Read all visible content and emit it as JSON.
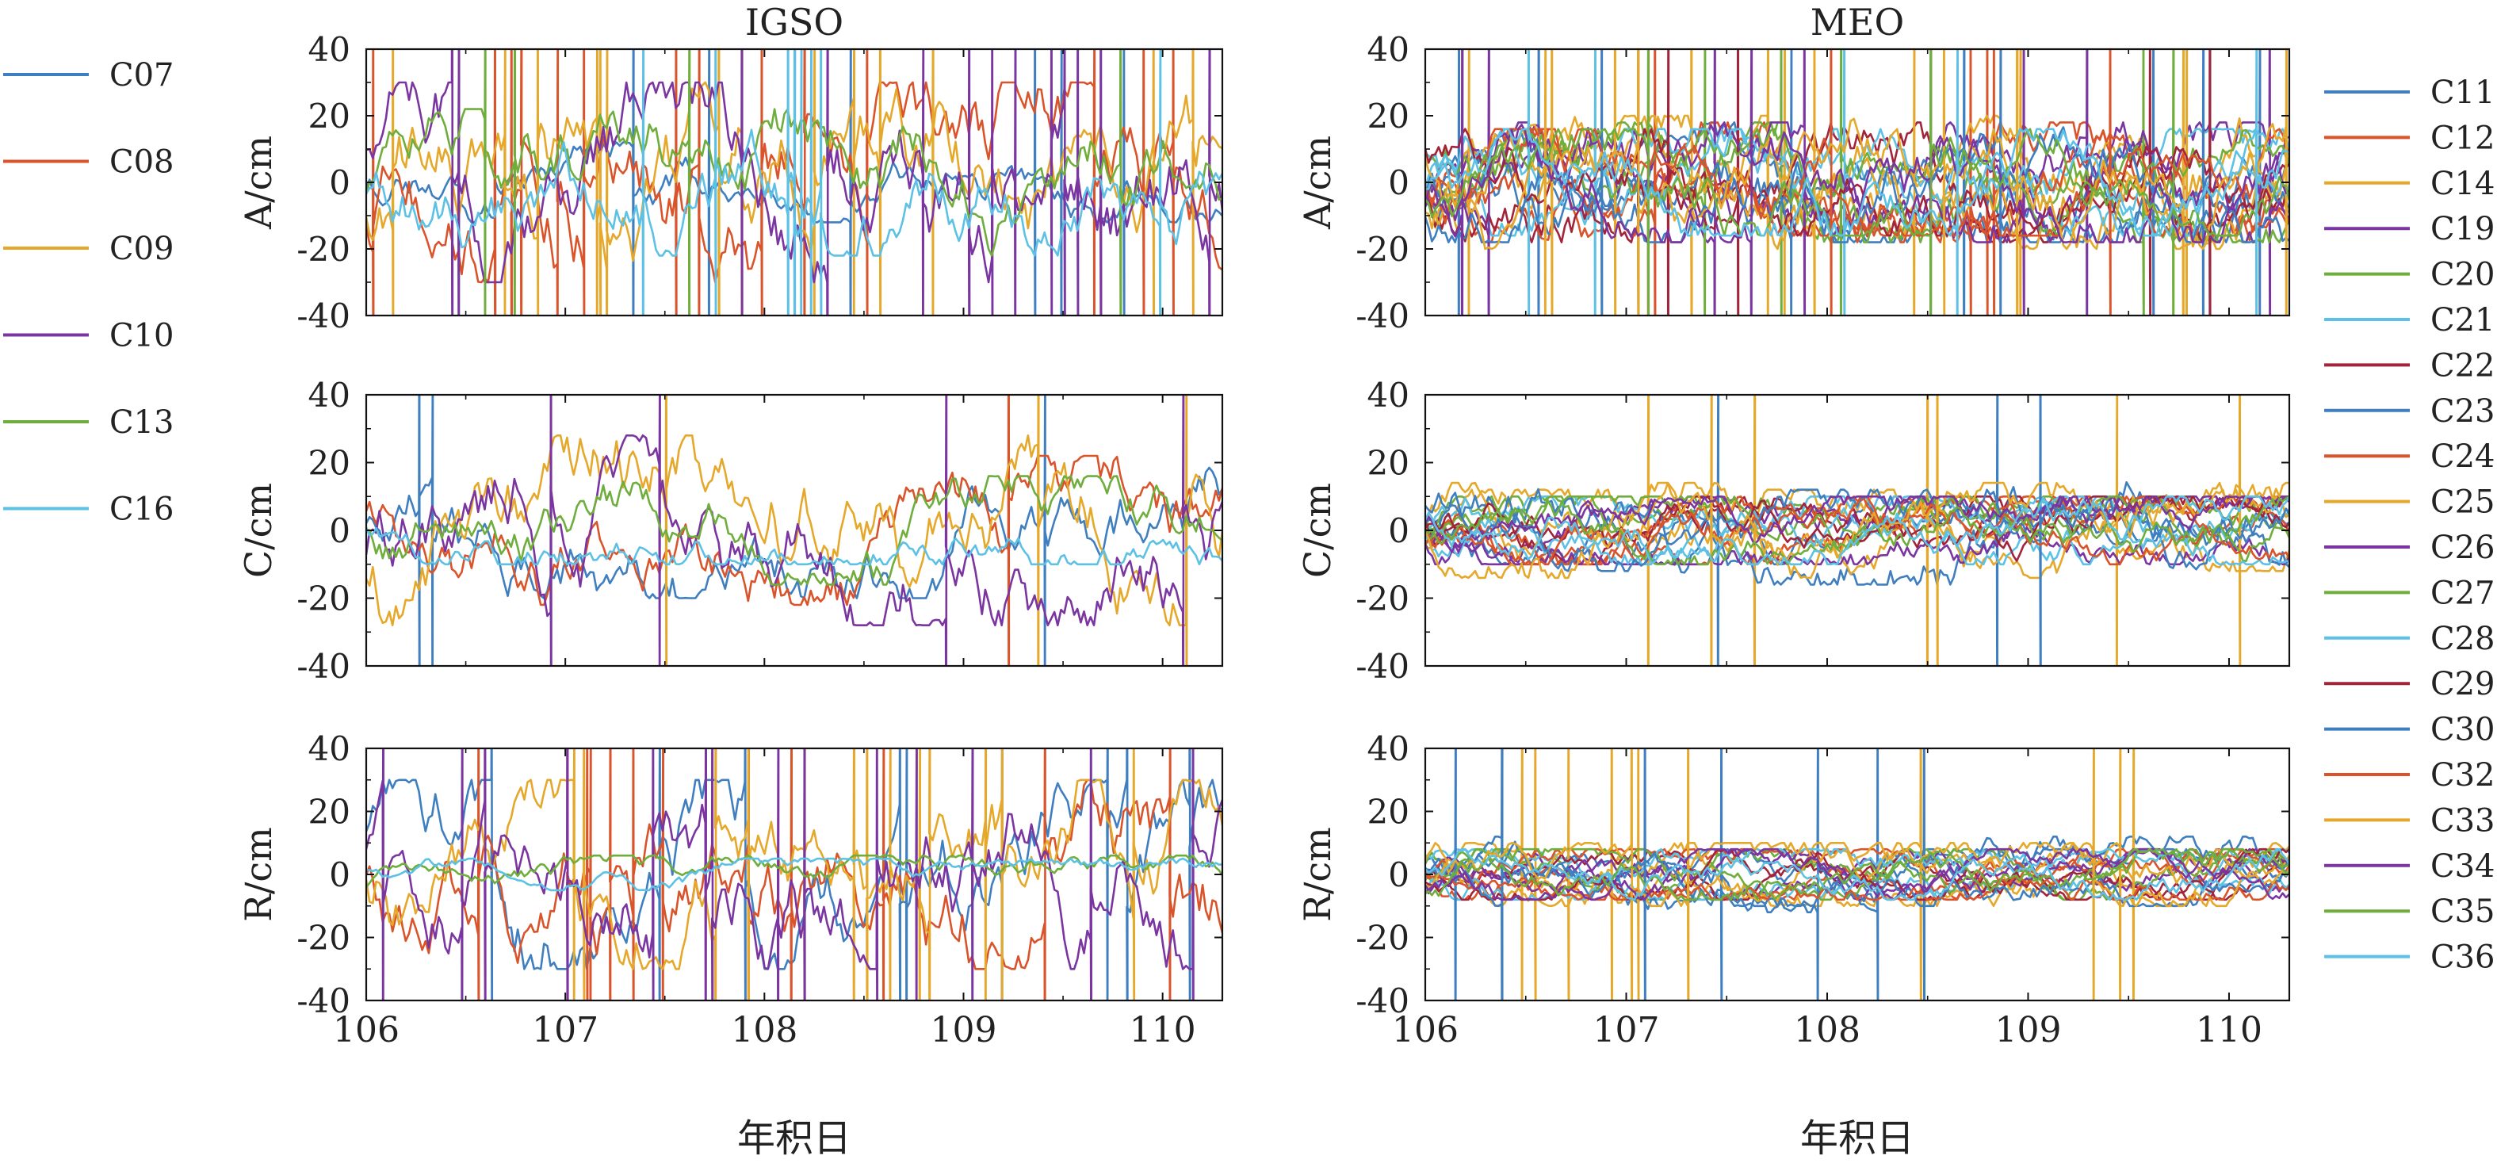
{
  "colors": {
    "C07": "#3F7FC0",
    "C08": "#D9542B",
    "C09": "#E5A82A",
    "C10": "#7B35A1",
    "C13": "#6FAE3C",
    "C16": "#5DC1E6",
    "C11": "#3F7FC0",
    "C12": "#D9542B",
    "C14": "#E5A82A",
    "C19": "#7B35A1",
    "C20": "#6FAE3C",
    "C21": "#5DC1E6",
    "C22": "#A2243A",
    "C23": "#3F7FC0",
    "C24": "#D9542B",
    "C25": "#E5A82A",
    "C26": "#7B35A1",
    "C27": "#6FAE3C",
    "C28": "#5DC1E6",
    "C29": "#A2243A",
    "C30": "#3F7FC0",
    "C32": "#D9542B",
    "C33": "#E5A82A",
    "C34": "#7B35A1",
    "C35": "#6FAE3C",
    "C36": "#5DC1E6"
  },
  "chart_data": [
    {
      "type": "line",
      "group": "IGSO",
      "title": "IGSO",
      "xlabel": "",
      "ylabel": "A/cm",
      "xlim": [
        106,
        110.3
      ],
      "ylim": [
        -40,
        40
      ],
      "xticks": [
        106,
        107,
        108,
        109,
        110
      ],
      "yticks": [
        -40,
        -20,
        0,
        20,
        40
      ],
      "series": [
        {
          "name": "C07",
          "amplitude": 12,
          "spikes": 10
        },
        {
          "name": "C08",
          "amplitude": 30,
          "spikes": 14
        },
        {
          "name": "C09",
          "amplitude": 30,
          "spikes": 14
        },
        {
          "name": "C10",
          "amplitude": 30,
          "spikes": 14
        },
        {
          "name": "C13",
          "amplitude": 22,
          "spikes": 4
        },
        {
          "name": "C16",
          "amplitude": 22,
          "spikes": 8
        }
      ]
    },
    {
      "type": "line",
      "group": "IGSO",
      "title": "",
      "xlabel": "",
      "ylabel": "C/cm",
      "xlim": [
        106,
        110.3
      ],
      "ylim": [
        -40,
        40
      ],
      "xticks": [
        106,
        107,
        108,
        109,
        110
      ],
      "yticks": [
        -40,
        -20,
        0,
        20,
        40
      ],
      "series": [
        {
          "name": "C07",
          "amplitude": 20,
          "spikes": 3
        },
        {
          "name": "C08",
          "amplitude": 22,
          "spikes": 1
        },
        {
          "name": "C09",
          "amplitude": 28,
          "spikes": 3
        },
        {
          "name": "C10",
          "amplitude": 28,
          "spikes": 4
        },
        {
          "name": "C13",
          "amplitude": 16,
          "spikes": 0
        },
        {
          "name": "C16",
          "amplitude": 10,
          "spikes": 0
        }
      ]
    },
    {
      "type": "line",
      "group": "IGSO",
      "title": "",
      "xlabel": "年积日",
      "ylabel": "R/cm",
      "xlim": [
        106,
        110.3
      ],
      "ylim": [
        -40,
        40
      ],
      "xticks": [
        106,
        107,
        108,
        109,
        110
      ],
      "yticks": [
        -40,
        -20,
        0,
        20,
        40
      ],
      "series": [
        {
          "name": "C07",
          "amplitude": 30,
          "spikes": 10
        },
        {
          "name": "C08",
          "amplitude": 30,
          "spikes": 12
        },
        {
          "name": "C09",
          "amplitude": 30,
          "spikes": 14
        },
        {
          "name": "C10",
          "amplitude": 30,
          "spikes": 14
        },
        {
          "name": "C13",
          "amplitude": 6,
          "spikes": 0
        },
        {
          "name": "C16",
          "amplitude": 5,
          "spikes": 0
        }
      ]
    },
    {
      "type": "line",
      "group": "MEO",
      "title": "MEO",
      "xlabel": "",
      "ylabel": "A/cm",
      "xlim": [
        106,
        110.3
      ],
      "ylim": [
        -40,
        40
      ],
      "xticks": [
        106,
        107,
        108,
        109,
        110
      ],
      "yticks": [
        -40,
        -20,
        0,
        20,
        40
      ],
      "series": [
        {
          "name": "C11",
          "amplitude": 18,
          "spikes": 4
        },
        {
          "name": "C12",
          "amplitude": 18,
          "spikes": 3
        },
        {
          "name": "C14",
          "amplitude": 20,
          "spikes": 6
        },
        {
          "name": "C19",
          "amplitude": 18,
          "spikes": 3
        },
        {
          "name": "C20",
          "amplitude": 18,
          "spikes": 3
        },
        {
          "name": "C21",
          "amplitude": 16,
          "spikes": 2
        },
        {
          "name": "C22",
          "amplitude": 18,
          "spikes": 3
        },
        {
          "name": "C23",
          "amplitude": 18,
          "spikes": 4
        },
        {
          "name": "C24",
          "amplitude": 16,
          "spikes": 2
        },
        {
          "name": "C25",
          "amplitude": 20,
          "spikes": 6
        },
        {
          "name": "C26",
          "amplitude": 18,
          "spikes": 3
        },
        {
          "name": "C27",
          "amplitude": 16,
          "spikes": 2
        },
        {
          "name": "C28",
          "amplitude": 16,
          "spikes": 2
        },
        {
          "name": "C29",
          "amplitude": 16,
          "spikes": 2
        },
        {
          "name": "C30",
          "amplitude": 18,
          "spikes": 3
        },
        {
          "name": "C32",
          "amplitude": 16,
          "spikes": 2
        },
        {
          "name": "C33",
          "amplitude": 20,
          "spikes": 6
        },
        {
          "name": "C34",
          "amplitude": 18,
          "spikes": 3
        },
        {
          "name": "C35",
          "amplitude": 16,
          "spikes": 2
        },
        {
          "name": "C36",
          "amplitude": 16,
          "spikes": 2
        }
      ]
    },
    {
      "type": "line",
      "group": "MEO",
      "title": "",
      "xlabel": "",
      "ylabel": "C/cm",
      "xlim": [
        106,
        110.3
      ],
      "ylim": [
        -40,
        40
      ],
      "xticks": [
        106,
        107,
        108,
        109,
        110
      ],
      "yticks": [
        -40,
        -20,
        0,
        20,
        40
      ],
      "series": [
        {
          "name": "C11",
          "amplitude": 10,
          "spikes": 0
        },
        {
          "name": "C12",
          "amplitude": 10,
          "spikes": 0
        },
        {
          "name": "C14",
          "amplitude": 12,
          "spikes": 3
        },
        {
          "name": "C19",
          "amplitude": 10,
          "spikes": 0
        },
        {
          "name": "C20",
          "amplitude": 10,
          "spikes": 0
        },
        {
          "name": "C21",
          "amplitude": 10,
          "spikes": 0
        },
        {
          "name": "C22",
          "amplitude": 10,
          "spikes": 0
        },
        {
          "name": "C23",
          "amplitude": 16,
          "spikes": 2
        },
        {
          "name": "C24",
          "amplitude": 10,
          "spikes": 0
        },
        {
          "name": "C25",
          "amplitude": 14,
          "spikes": 2
        },
        {
          "name": "C26",
          "amplitude": 10,
          "spikes": 0
        },
        {
          "name": "C27",
          "amplitude": 10,
          "spikes": 0
        },
        {
          "name": "C28",
          "amplitude": 10,
          "spikes": 0
        },
        {
          "name": "C29",
          "amplitude": 10,
          "spikes": 0
        },
        {
          "name": "C30",
          "amplitude": 12,
          "spikes": 1
        },
        {
          "name": "C32",
          "amplitude": 10,
          "spikes": 0
        },
        {
          "name": "C33",
          "amplitude": 14,
          "spikes": 2
        },
        {
          "name": "C34",
          "amplitude": 10,
          "spikes": 0
        },
        {
          "name": "C35",
          "amplitude": 10,
          "spikes": 0
        },
        {
          "name": "C36",
          "amplitude": 10,
          "spikes": 0
        }
      ]
    },
    {
      "type": "line",
      "group": "MEO",
      "title": "",
      "xlabel": "年积日",
      "ylabel": "R/cm",
      "xlim": [
        106,
        110.3
      ],
      "ylim": [
        -40,
        40
      ],
      "xticks": [
        106,
        107,
        108,
        109,
        110
      ],
      "yticks": [
        -40,
        -20,
        0,
        20,
        40
      ],
      "series": [
        {
          "name": "C11",
          "amplitude": 8,
          "spikes": 0
        },
        {
          "name": "C12",
          "amplitude": 8,
          "spikes": 0
        },
        {
          "name": "C14",
          "amplitude": 10,
          "spikes": 4
        },
        {
          "name": "C19",
          "amplitude": 8,
          "spikes": 0
        },
        {
          "name": "C20",
          "amplitude": 8,
          "spikes": 0
        },
        {
          "name": "C21",
          "amplitude": 8,
          "spikes": 0
        },
        {
          "name": "C22",
          "amplitude": 8,
          "spikes": 0
        },
        {
          "name": "C23",
          "amplitude": 12,
          "spikes": 5
        },
        {
          "name": "C24",
          "amplitude": 8,
          "spikes": 0
        },
        {
          "name": "C25",
          "amplitude": 10,
          "spikes": 4
        },
        {
          "name": "C26",
          "amplitude": 8,
          "spikes": 0
        },
        {
          "name": "C27",
          "amplitude": 8,
          "spikes": 0
        },
        {
          "name": "C28",
          "amplitude": 8,
          "spikes": 0
        },
        {
          "name": "C29",
          "amplitude": 8,
          "spikes": 0
        },
        {
          "name": "C30",
          "amplitude": 10,
          "spikes": 3
        },
        {
          "name": "C32",
          "amplitude": 8,
          "spikes": 0
        },
        {
          "name": "C33",
          "amplitude": 10,
          "spikes": 3
        },
        {
          "name": "C34",
          "amplitude": 8,
          "spikes": 0
        },
        {
          "name": "C35",
          "amplitude": 8,
          "spikes": 0
        },
        {
          "name": "C36",
          "amplitude": 8,
          "spikes": 0
        }
      ]
    }
  ],
  "legend_igso": [
    "C07",
    "C08",
    "C09",
    "C10",
    "C13",
    "C16"
  ],
  "legend_meo": [
    "C11",
    "C12",
    "C14",
    "C19",
    "C20",
    "C21",
    "C22",
    "C23",
    "C24",
    "C25",
    "C26",
    "C27",
    "C28",
    "C29",
    "C30",
    "C32",
    "C33",
    "C34",
    "C35",
    "C36"
  ]
}
